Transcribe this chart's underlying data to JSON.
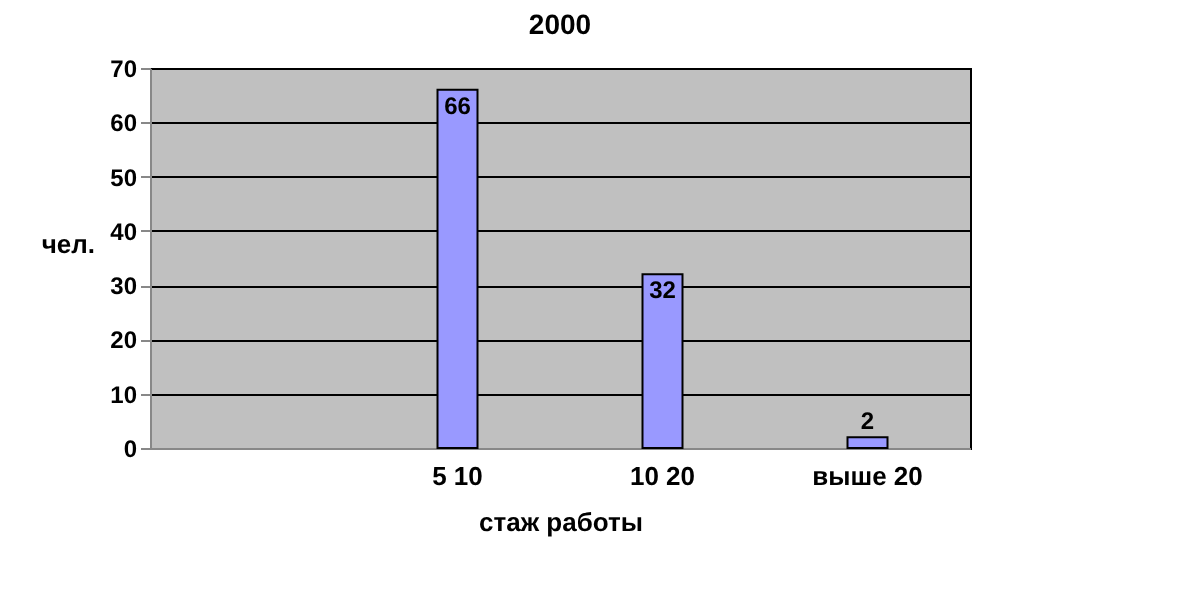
{
  "chart_data": {
    "type": "bar",
    "title": "2000",
    "xlabel": "стаж работы",
    "ylabel": "чел.",
    "categories": [
      null,
      "5  10",
      "10  20",
      "выше 20"
    ],
    "values": [
      null,
      66,
      32,
      2
    ],
    "color": "#9999ff",
    "ylim": [
      0,
      70
    ],
    "yticks": [
      0,
      10,
      20,
      30,
      40,
      50,
      60,
      70
    ],
    "grid": "y",
    "data_labels": true
  }
}
